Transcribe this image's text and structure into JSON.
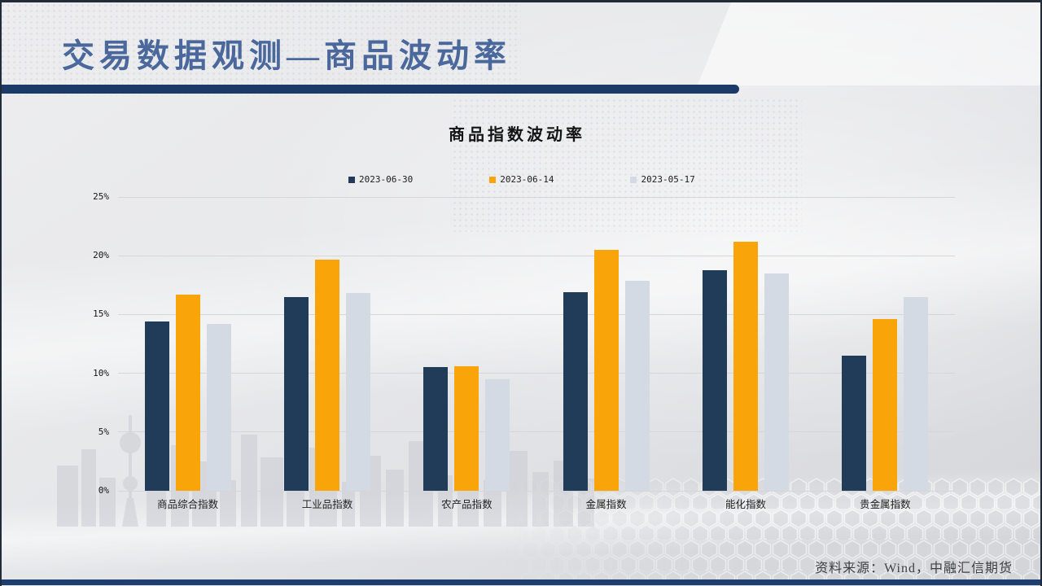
{
  "slide": {
    "title": "交易数据观测—商品波动率",
    "footer": "资料来源：Wind，中融汇信期货"
  },
  "theme": {
    "title_color": "#4a689c",
    "accent_bar_color": "#1b3a68",
    "background_color": "#e8e9eb"
  },
  "chart_data": {
    "type": "bar",
    "title": "商品指数波动率",
    "categories": [
      "商品综合指数",
      "工业品指数",
      "农产品指数",
      "金属指数",
      "能化指数",
      "贵金属指数"
    ],
    "series": [
      {
        "name": "2023-06-30",
        "color": "#213c58",
        "values": [
          14.4,
          16.5,
          10.5,
          16.9,
          18.8,
          11.5
        ]
      },
      {
        "name": "2023-06-14",
        "color": "#f9a409",
        "values": [
          16.7,
          19.7,
          10.6,
          20.5,
          21.2,
          14.6
        ]
      },
      {
        "name": "2023-05-17",
        "color": "#d4dae4",
        "values": [
          14.2,
          16.8,
          9.5,
          17.9,
          18.5,
          16.5
        ]
      }
    ],
    "xlabel": "",
    "ylabel": "",
    "ylim": [
      0,
      25
    ],
    "yticks": [
      "0%",
      "5%",
      "10%",
      "15%",
      "20%",
      "25%"
    ],
    "grid": true,
    "legend_position": "top"
  }
}
